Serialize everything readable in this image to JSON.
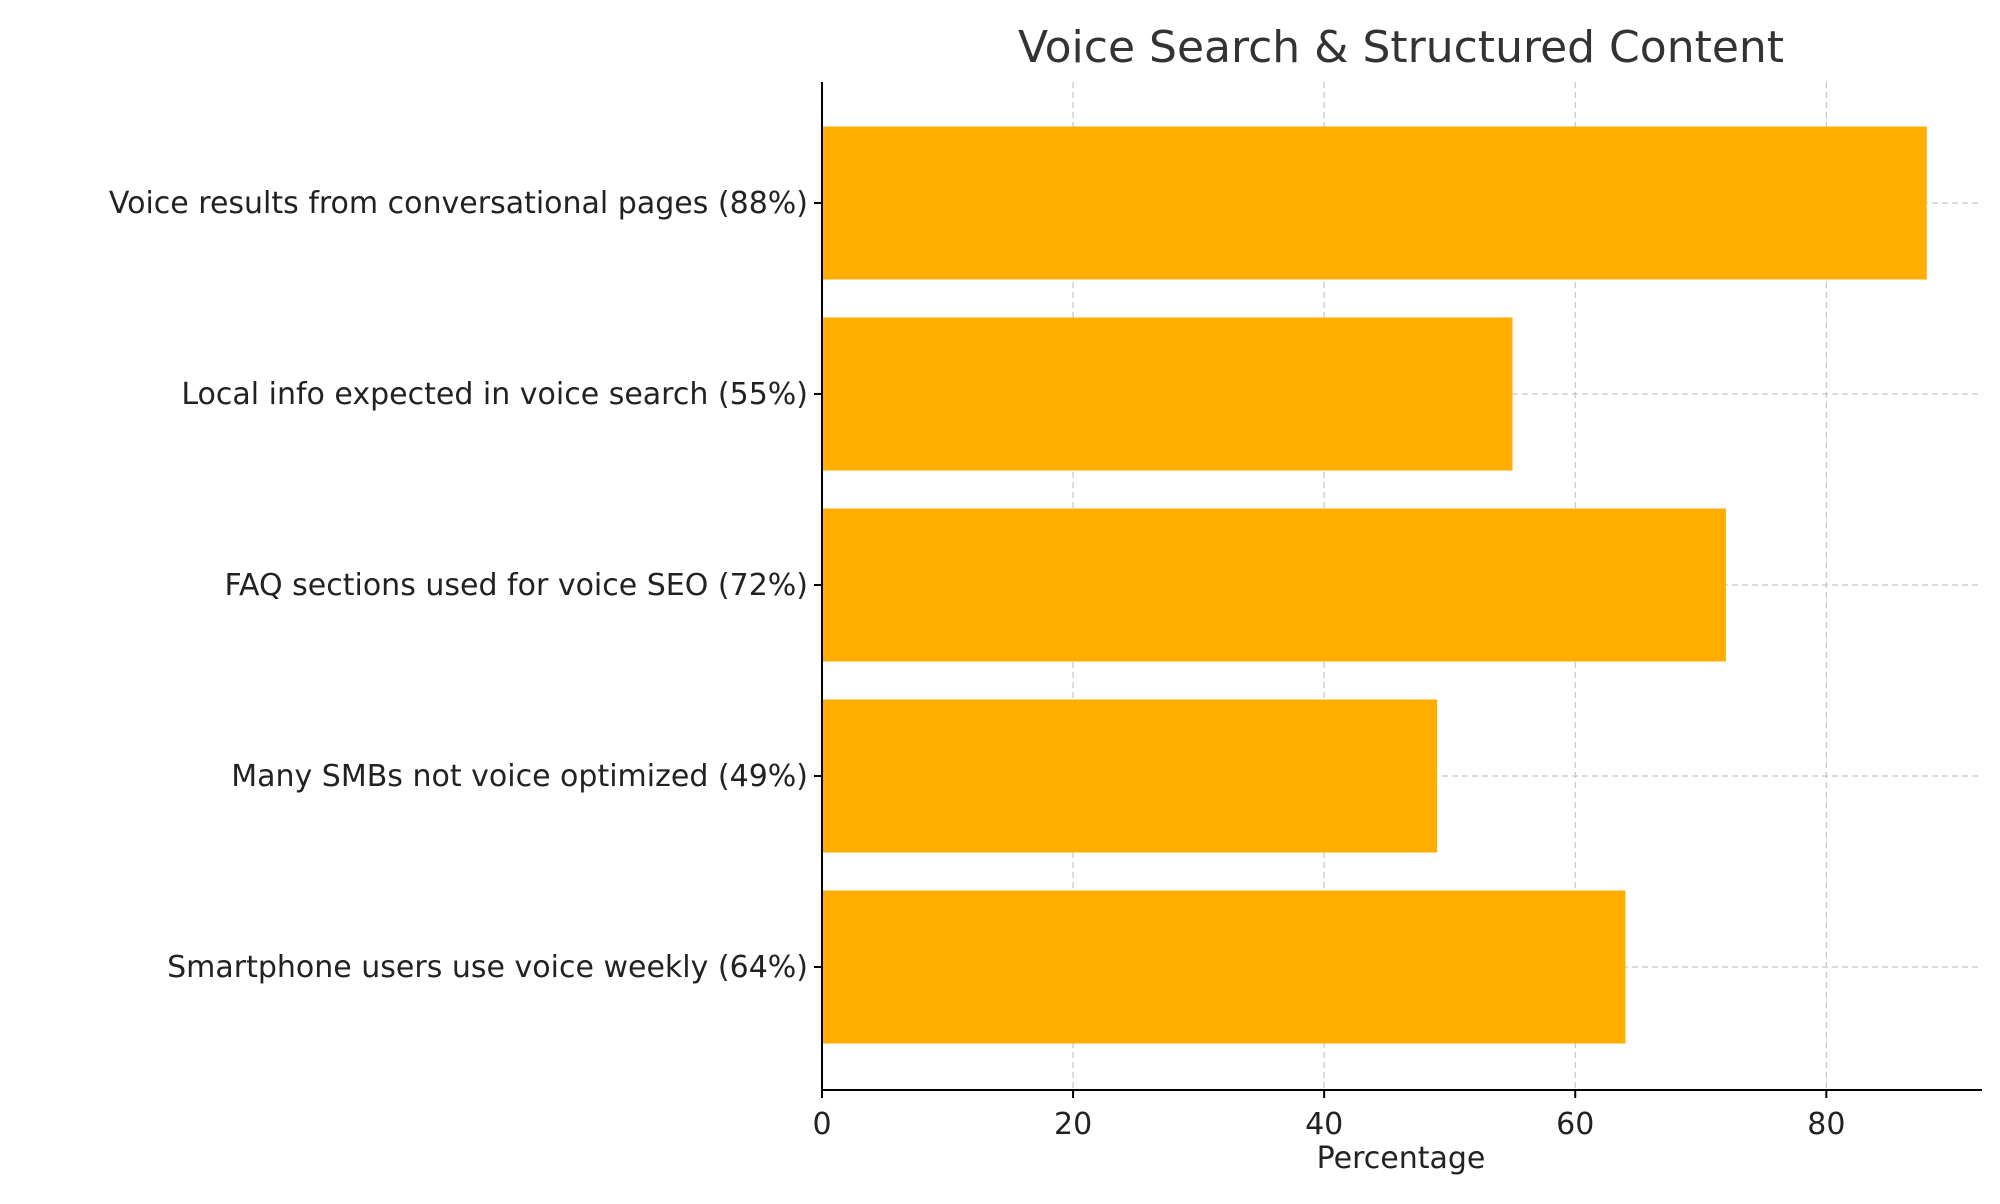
{
  "chart_data": {
    "type": "bar",
    "orientation": "horizontal",
    "title": "Voice Search & Structured Content",
    "xlabel": "Percentage",
    "ylabel": "",
    "categories": [
      "Voice results from conversational pages (88%)",
      "Local info expected in voice search (55%)",
      "FAQ sections used for voice SEO (72%)",
      "Many SMBs not voice optimized (49%)",
      "Smartphone users use voice weekly (64%)"
    ],
    "values": [
      88,
      55,
      72,
      49,
      64
    ],
    "xlim": [
      0,
      92.4
    ],
    "xticks": [
      "0",
      "20",
      "40",
      "60",
      "80"
    ],
    "grid": true,
    "bar_color": "#ffae00"
  }
}
